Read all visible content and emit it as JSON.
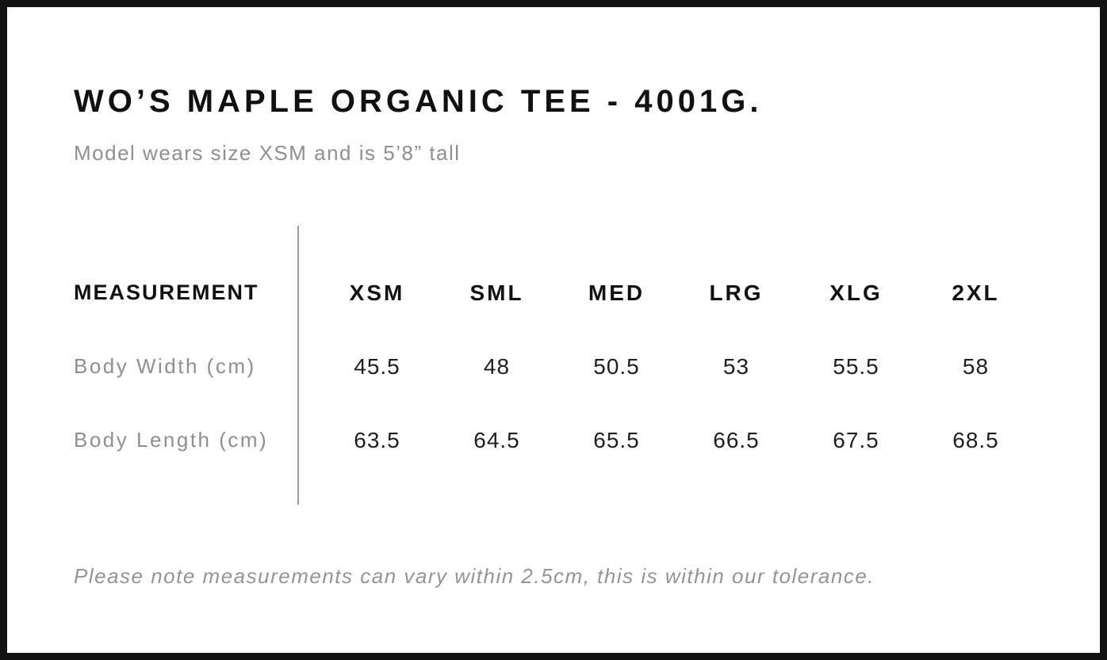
{
  "page": {
    "title": "WO’S MAPLE ORGANIC TEE - 4001G.",
    "subtitle": "Model wears size XSM and is 5’8” tall",
    "footnote": "Please note measurements can vary within 2.5cm, this is within our tolerance."
  },
  "size_chart": {
    "measurement_header": "MEASUREMENT",
    "size_headers": [
      "XSM",
      "SML",
      "MED",
      "LRG",
      "XLG",
      "2XL"
    ],
    "rows": [
      {
        "label": "Body Width (cm)",
        "values": [
          "45.5",
          "48",
          "50.5",
          "53",
          "55.5",
          "58"
        ]
      },
      {
        "label": "Body Length (cm)",
        "values": [
          "63.5",
          "64.5",
          "65.5",
          "66.5",
          "67.5",
          "68.5"
        ]
      }
    ]
  },
  "chart_data": {
    "type": "table",
    "title": "WO’S MAPLE ORGANIC TEE - 4001G.",
    "columns": [
      "MEASUREMENT",
      "XSM",
      "SML",
      "MED",
      "LRG",
      "XLG",
      "2XL"
    ],
    "rows": [
      [
        "Body Width (cm)",
        45.5,
        48,
        50.5,
        53,
        55.5,
        58
      ],
      [
        "Body Length (cm)",
        63.5,
        64.5,
        65.5,
        66.5,
        67.5,
        68.5
      ]
    ],
    "note": "Please note measurements can vary within 2.5cm, this is within our tolerance."
  },
  "colors": {
    "text_primary": "#111111",
    "text_secondary": "#8f8f8f",
    "divider": "#999999",
    "page_border": "#111111",
    "background": "#ffffff"
  }
}
